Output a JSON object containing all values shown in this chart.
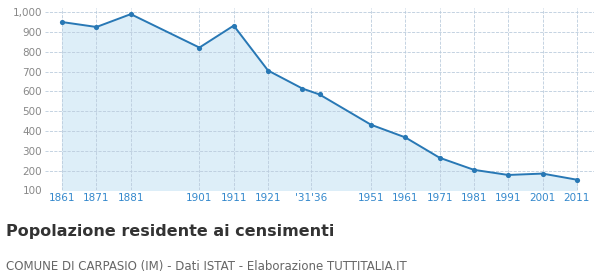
{
  "values": [
    951,
    926,
    991,
    822,
    933,
    706,
    615,
    585,
    432,
    368,
    265,
    204,
    178,
    185,
    154
  ],
  "x_positions": [
    0,
    1,
    2,
    4,
    5,
    6,
    7,
    7.5,
    9,
    10,
    11,
    12,
    13,
    14,
    15
  ],
  "x_tick_labels": [
    "1861",
    "1871",
    "1881",
    "1901",
    "1911",
    "1921",
    "'31'36",
    "1951",
    "1961",
    "1971",
    "1981",
    "1991",
    "2001",
    "2011"
  ],
  "x_tick_positions": [
    0,
    1,
    2,
    4,
    5,
    6,
    7.25,
    9,
    10,
    11,
    12,
    13,
    14,
    15
  ],
  "line_color": "#2878b5",
  "fill_color": "#ddeef8",
  "marker_color": "#2878b5",
  "background_color": "#ffffff",
  "grid_color": "#bbccdd",
  "ylim": [
    100,
    1020
  ],
  "ytick_values": [
    100,
    200,
    300,
    400,
    500,
    600,
    700,
    800,
    900,
    1000
  ],
  "title": "Popolazione residente ai censimenti",
  "subtitle": "COMUNE DI CARPASIO (IM) - Dati ISTAT - Elaborazione TUTTITALIA.IT",
  "title_fontsize": 11.5,
  "subtitle_fontsize": 8.5,
  "title_color": "#333333",
  "subtitle_color": "#666666",
  "tick_color": "#3388cc",
  "ytick_color": "#888888"
}
